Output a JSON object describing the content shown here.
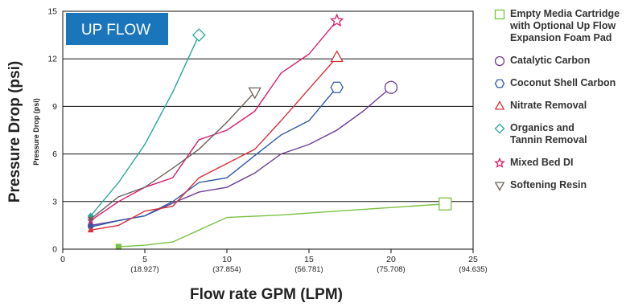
{
  "chart_data": {
    "type": "line",
    "title_box": "UP FLOW",
    "ylabel_outer": "Pressure Drop (psi)",
    "ylabel_inner": "Pressure Drop (psi)",
    "xlabel": "Flow rate GPM (LPM)",
    "xlim": [
      0,
      25
    ],
    "ylim": [
      0,
      15
    ],
    "x_ticks": [
      {
        "value": 0,
        "label": "0",
        "sub": ""
      },
      {
        "value": 5,
        "label": "5",
        "sub": "(18.927)"
      },
      {
        "value": 10,
        "label": "10",
        "sub": "(37.854)"
      },
      {
        "value": 15,
        "label": "15",
        "sub": "(56.781)"
      },
      {
        "value": 20,
        "label": "20",
        "sub": "(75.708)"
      },
      {
        "value": 25,
        "label": "25",
        "sub": "(94.635)"
      }
    ],
    "y_ticks": [
      "0",
      "3",
      "6",
      "9",
      "12",
      "15"
    ],
    "grid": "horizontal",
    "legend_position": "right",
    "series": [
      {
        "name": "Empty Media Cartridge with Optional Up Flow Expansion Foam Pad",
        "color": "#7ac143",
        "marker": "square",
        "x": [
          3.4,
          5,
          6.7,
          10,
          13.3,
          16.7,
          23.3
        ],
        "y": [
          0.15,
          0.25,
          0.45,
          2.0,
          2.15,
          2.4,
          2.85
        ]
      },
      {
        "name": "Catalytic Carbon",
        "color": "#6c3d91",
        "marker": "circle",
        "x": [
          1.7,
          3.4,
          5,
          6.7,
          8.3,
          10,
          11.7,
          13.3,
          15,
          16.7,
          18.3,
          20
        ],
        "y": [
          1.5,
          1.8,
          2.1,
          2.9,
          3.6,
          3.9,
          4.8,
          6.0,
          6.6,
          7.5,
          8.7,
          10.2
        ]
      },
      {
        "name": "Coconut Shell Carbon",
        "color": "#2e5aa8",
        "marker": "hexagon",
        "x": [
          1.7,
          3.4,
          5,
          6.7,
          8.3,
          10,
          11.7,
          13.3,
          15,
          16.7
        ],
        "y": [
          1.4,
          1.8,
          2.1,
          3.0,
          4.2,
          4.5,
          5.9,
          7.2,
          8.1,
          10.2
        ]
      },
      {
        "name": "Nitrate Removal",
        "color": "#d6303a",
        "marker": "triangle-up",
        "x": [
          1.7,
          3.4,
          5,
          6.7,
          8.3,
          10,
          11.7,
          13.3,
          15,
          16.7
        ],
        "y": [
          1.2,
          1.5,
          2.4,
          2.7,
          4.5,
          5.4,
          6.3,
          8.1,
          10.1,
          12.1
        ]
      },
      {
        "name": "Organics and Tannin Removal",
        "color": "#2aa69a",
        "marker": "diamond",
        "x": [
          1.7,
          3.4,
          5,
          6.7,
          8.3
        ],
        "y": [
          2.1,
          4.2,
          6.6,
          9.9,
          13.5
        ]
      },
      {
        "name": "Mixed Bed DI",
        "color": "#d81b6e",
        "marker": "star",
        "x": [
          1.7,
          3.4,
          5,
          6.7,
          8.3,
          10,
          11.7,
          13.3,
          15,
          16.7
        ],
        "y": [
          1.8,
          3.0,
          3.9,
          4.5,
          6.9,
          7.5,
          8.7,
          11.1,
          12.3,
          14.4
        ]
      },
      {
        "name": "Softening Resin",
        "color": "#6b625a",
        "marker": "triangle-down",
        "x": [
          1.7,
          3.4,
          5,
          6.7,
          8.3,
          10,
          11.7
        ],
        "y": [
          1.9,
          3.3,
          3.9,
          5.1,
          6.3,
          8.0,
          9.9
        ]
      }
    ]
  },
  "legend": [
    {
      "lines": [
        "Empty Media Cartridge",
        "with Optional Up Flow",
        "Expansion Foam Pad"
      ]
    },
    {
      "lines": [
        "Catalytic Carbon"
      ]
    },
    {
      "lines": [
        "Coconut Shell Carbon"
      ]
    },
    {
      "lines": [
        "Nitrate Removal"
      ]
    },
    {
      "lines": [
        "Organics and",
        "Tannin Removal"
      ]
    },
    {
      "lines": [
        "Mixed Bed DI"
      ]
    },
    {
      "lines": [
        "Softening Resin"
      ]
    }
  ]
}
